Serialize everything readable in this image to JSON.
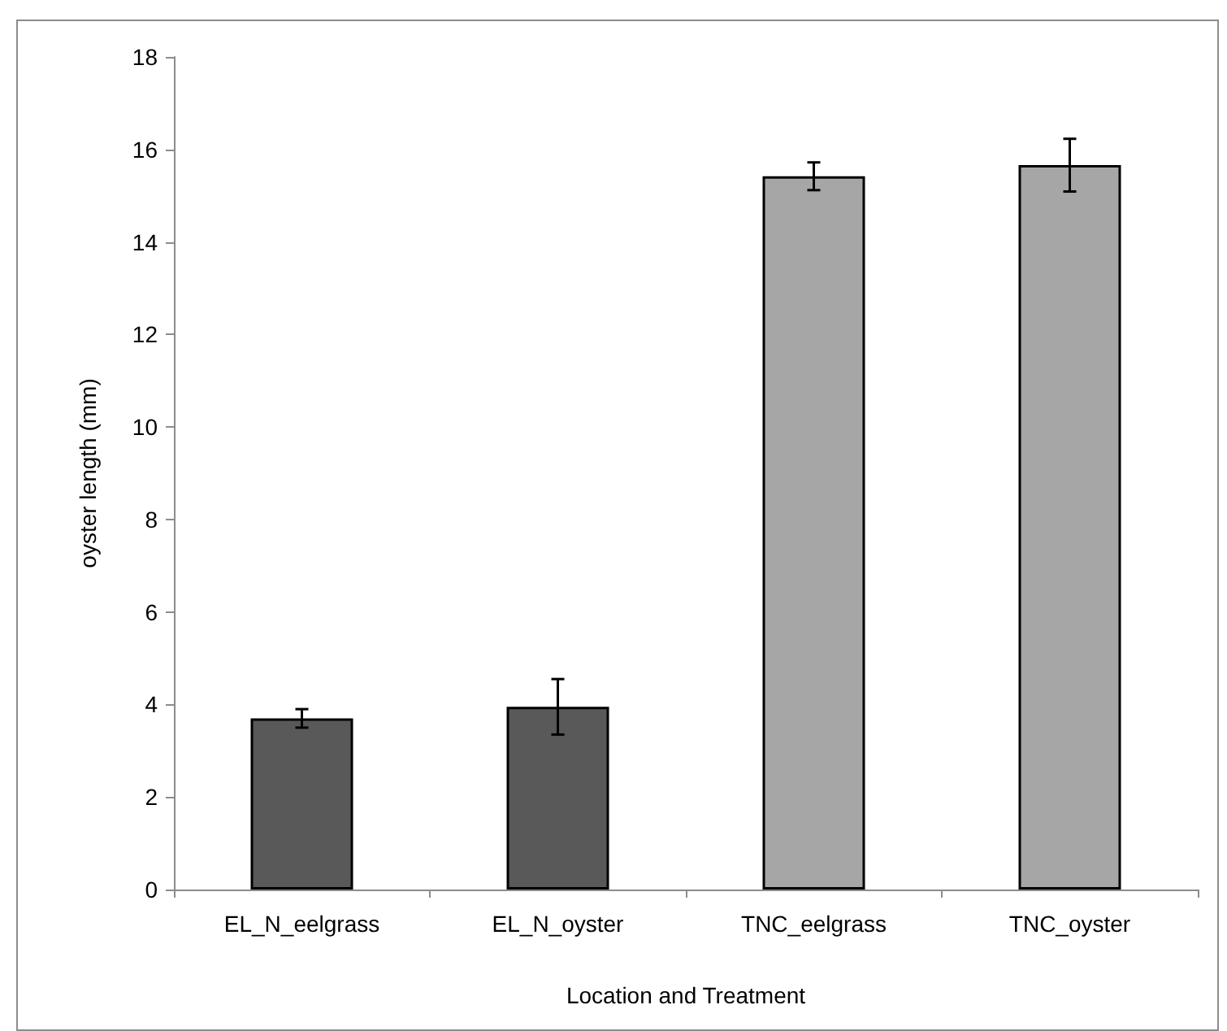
{
  "chart_data": {
    "type": "bar",
    "categories": [
      "EL_N_eelgrass",
      "EL_N_oyster",
      "TNC_eelgrass",
      "TNC_oyster"
    ],
    "values": [
      3.7,
      3.95,
      15.42,
      15.66
    ],
    "colors": [
      "#595959",
      "#595959",
      "#a6a6a6",
      "#a6a6a6"
    ],
    "errors": [
      0.2,
      0.6,
      0.3,
      0.57
    ],
    "xlabel": "Location and Treatment",
    "ylabel": "oyster length (mm)",
    "ylim": [
      0,
      18
    ],
    "yticks": [
      0,
      2,
      4,
      6,
      8,
      10,
      12,
      14,
      16,
      18
    ],
    "grid": false
  }
}
